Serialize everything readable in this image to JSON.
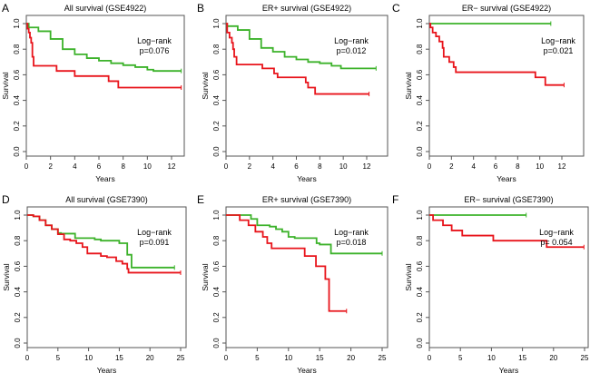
{
  "chart_data": [
    {
      "letter": "A",
      "title": "All survival (GSE4922)",
      "type": "line",
      "xlabel": "Years",
      "ylabel": "Survival",
      "xlim": [
        0,
        12
      ],
      "xticks": [
        0,
        2,
        4,
        6,
        8,
        10,
        12
      ],
      "ylim": [
        0,
        1
      ],
      "yticks": [
        "0.0",
        "0.2",
        "0.4",
        "0.6",
        "0.8",
        "1.0"
      ],
      "annotation": [
        "Log−rank",
        "p=0.076"
      ],
      "series": [
        {
          "color": "#3cb22a",
          "points": [
            [
              0,
              1
            ],
            [
              0.2,
              0.97
            ],
            [
              1,
              0.94
            ],
            [
              2,
              0.88
            ],
            [
              3,
              0.8
            ],
            [
              4,
              0.76
            ],
            [
              5,
              0.73
            ],
            [
              6,
              0.71
            ],
            [
              7,
              0.69
            ],
            [
              8,
              0.675
            ],
            [
              9,
              0.66
            ],
            [
              10,
              0.64
            ],
            [
              10.5,
              0.63
            ],
            [
              12.8,
              0.63
            ]
          ]
        },
        {
          "color": "#e8141b",
          "points": [
            [
              0,
              1
            ],
            [
              0.1,
              0.96
            ],
            [
              0.2,
              0.93
            ],
            [
              0.3,
              0.89
            ],
            [
              0.4,
              0.85
            ],
            [
              0.5,
              0.74
            ],
            [
              0.6,
              0.67
            ],
            [
              2.5,
              0.63
            ],
            [
              4,
              0.59
            ],
            [
              6.8,
              0.55
            ],
            [
              7.6,
              0.5
            ],
            [
              12.8,
              0.5
            ]
          ]
        }
      ]
    },
    {
      "letter": "B",
      "title": "ER+ survival (GSE4922)",
      "type": "line",
      "xlabel": "Years",
      "ylabel": "Survival",
      "xlim": [
        0,
        12
      ],
      "xticks": [
        0,
        2,
        4,
        6,
        8,
        10,
        12
      ],
      "ylim": [
        0,
        1
      ],
      "yticks": [
        "0.0",
        "0.2",
        "0.4",
        "0.6",
        "0.8",
        "1.0"
      ],
      "annotation": [
        "Log−rank",
        "p=0.012"
      ],
      "series": [
        {
          "color": "#3cb22a",
          "points": [
            [
              0,
              1
            ],
            [
              0.1,
              0.98
            ],
            [
              1,
              0.95
            ],
            [
              2,
              0.88
            ],
            [
              3,
              0.81
            ],
            [
              4,
              0.78
            ],
            [
              5,
              0.74
            ],
            [
              6,
              0.72
            ],
            [
              7,
              0.7
            ],
            [
              8,
              0.69
            ],
            [
              9,
              0.67
            ],
            [
              9.8,
              0.65
            ],
            [
              12.8,
              0.65
            ]
          ]
        },
        {
          "color": "#e8141b",
          "points": [
            [
              0,
              1
            ],
            [
              0.1,
              0.93
            ],
            [
              0.3,
              0.89
            ],
            [
              0.5,
              0.85
            ],
            [
              0.6,
              0.8
            ],
            [
              0.7,
              0.74
            ],
            [
              0.9,
              0.68
            ],
            [
              3.1,
              0.65
            ],
            [
              4.1,
              0.61
            ],
            [
              4.4,
              0.58
            ],
            [
              6.8,
              0.54
            ],
            [
              7,
              0.5
            ],
            [
              7.6,
              0.45
            ],
            [
              12.2,
              0.45
            ]
          ]
        }
      ]
    },
    {
      "letter": "C",
      "title": "ER− survival (GSE4922)",
      "type": "line",
      "xlabel": "Years",
      "ylabel": "Survival",
      "xlim": [
        0,
        12
      ],
      "xticks": [
        0,
        2,
        4,
        6,
        8,
        10,
        12
      ],
      "ylim": [
        0,
        1
      ],
      "yticks": [
        "0.0",
        "0.2",
        "0.4",
        "0.6",
        "0.8",
        "1.0"
      ],
      "annotation": [
        "Log−rank",
        "p=0.021"
      ],
      "series": [
        {
          "color": "#3cb22a",
          "points": [
            [
              0,
              1
            ],
            [
              11,
              1
            ]
          ]
        },
        {
          "color": "#e8141b",
          "points": [
            [
              0,
              1
            ],
            [
              0.1,
              0.97
            ],
            [
              0.3,
              0.93
            ],
            [
              0.6,
              0.9
            ],
            [
              0.9,
              0.86
            ],
            [
              1.2,
              0.81
            ],
            [
              1.3,
              0.74
            ],
            [
              1.8,
              0.7
            ],
            [
              2.2,
              0.66
            ],
            [
              2.4,
              0.62
            ],
            [
              9.6,
              0.58
            ],
            [
              10.5,
              0.52
            ],
            [
              12.2,
              0.52
            ]
          ]
        }
      ]
    },
    {
      "letter": "D",
      "title": "All survival (GSE7390)",
      "type": "line",
      "xlabel": "Years",
      "ylabel": "Survival",
      "xlim": [
        0,
        25
      ],
      "xticks": [
        0,
        5,
        10,
        15,
        20,
        25
      ],
      "ylim": [
        0,
        1
      ],
      "yticks": [
        "0.0",
        "0.2",
        "0.4",
        "0.6",
        "0.8",
        "1.0"
      ],
      "annotation": [
        "Log−rank",
        "p=0.091"
      ],
      "series": [
        {
          "color": "#3cb22a",
          "points": [
            [
              0,
              1
            ],
            [
              1,
              0.99
            ],
            [
              2,
              0.96
            ],
            [
              3,
              0.92
            ],
            [
              4,
              0.89
            ],
            [
              5,
              0.86
            ],
            [
              5.5,
              0.855
            ],
            [
              7.8,
              0.82
            ],
            [
              11,
              0.81
            ],
            [
              12,
              0.8
            ],
            [
              15,
              0.78
            ],
            [
              16.3,
              0.69
            ],
            [
              17,
              0.59
            ],
            [
              24,
              0.59
            ]
          ]
        },
        {
          "color": "#e8141b",
          "points": [
            [
              0,
              1
            ],
            [
              1,
              0.99
            ],
            [
              2,
              0.96
            ],
            [
              3,
              0.92
            ],
            [
              4,
              0.89
            ],
            [
              5,
              0.85
            ],
            [
              6,
              0.81
            ],
            [
              7,
              0.8
            ],
            [
              8,
              0.78
            ],
            [
              9,
              0.75
            ],
            [
              9.8,
              0.7
            ],
            [
              12,
              0.68
            ],
            [
              13,
              0.67
            ],
            [
              14.5,
              0.64
            ],
            [
              15.5,
              0.62
            ],
            [
              16.3,
              0.58
            ],
            [
              16.5,
              0.55
            ],
            [
              25,
              0.55
            ]
          ]
        }
      ]
    },
    {
      "letter": "E",
      "title": "ER+ survival (GSE7390)",
      "type": "line",
      "xlabel": "Years",
      "ylabel": "Survival",
      "xlim": [
        0,
        25
      ],
      "xticks": [
        0,
        5,
        10,
        15,
        20,
        25
      ],
      "ylim": [
        0,
        1
      ],
      "yticks": [
        "0.0",
        "0.2",
        "0.4",
        "0.6",
        "0.8",
        "1.0"
      ],
      "annotation": [
        "Log−rank",
        "p=0.018"
      ],
      "series": [
        {
          "color": "#3cb22a",
          "points": [
            [
              0,
              1
            ],
            [
              2.5,
              1
            ],
            [
              4,
              0.97
            ],
            [
              5,
              0.92
            ],
            [
              7,
              0.91
            ],
            [
              8,
              0.89
            ],
            [
              9,
              0.87
            ],
            [
              10,
              0.83
            ],
            [
              11,
              0.82
            ],
            [
              14.5,
              0.78
            ],
            [
              15,
              0.77
            ],
            [
              16.8,
              0.7
            ],
            [
              25,
              0.7
            ]
          ]
        },
        {
          "color": "#e8141b",
          "points": [
            [
              0,
              1
            ],
            [
              2.2,
              0.96
            ],
            [
              3.6,
              0.92
            ],
            [
              4.7,
              0.87
            ],
            [
              5.9,
              0.83
            ],
            [
              6.6,
              0.78
            ],
            [
              7.3,
              0.74
            ],
            [
              12.6,
              0.68
            ],
            [
              14.4,
              0.6
            ],
            [
              15.9,
              0.5
            ],
            [
              16.5,
              0.25
            ],
            [
              19.3,
              0.25
            ]
          ]
        }
      ]
    },
    {
      "letter": "F",
      "title": "ER− survival (GSE7390)",
      "type": "line",
      "xlabel": "Years",
      "ylabel": "Survival",
      "xlim": [
        0,
        25
      ],
      "xticks": [
        0,
        5,
        10,
        15,
        20,
        25
      ],
      "ylim": [
        0,
        1
      ],
      "yticks": [
        "0.0",
        "0.2",
        "0.4",
        "0.6",
        "0.8",
        "1.0"
      ],
      "annotation": [
        "Log−rank",
        "p= 0.054"
      ],
      "series": [
        {
          "color": "#3cb22a",
          "points": [
            [
              0,
              1
            ],
            [
              15.6,
              1
            ]
          ]
        },
        {
          "color": "#e8141b",
          "points": [
            [
              0,
              1
            ],
            [
              0.6,
              0.96
            ],
            [
              2.2,
              0.92
            ],
            [
              3.6,
              0.88
            ],
            [
              5.3,
              0.84
            ],
            [
              10.3,
              0.8
            ],
            [
              18.9,
              0.75
            ],
            [
              24.9,
              0.75
            ]
          ]
        }
      ]
    }
  ]
}
